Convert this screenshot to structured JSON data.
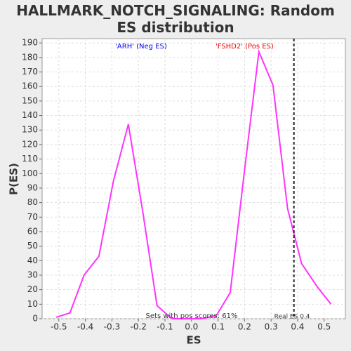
{
  "chart_data": {
    "type": "line",
    "title": "HALLMARK_NOTCH_SIGNALING: Random ES distribution",
    "x_label": "ES",
    "y_label": "P(ES)",
    "x": [
      -0.51,
      -0.458,
      -0.405,
      -0.349,
      -0.294,
      -0.238,
      -0.183,
      -0.13,
      -0.074,
      -0.019,
      0.037,
      0.093,
      0.146,
      0.201,
      0.254,
      0.307,
      0.362,
      0.415,
      0.474,
      0.526
    ],
    "series": [
      {
        "color": "#ff33ff",
        "values": [
          1,
          4,
          30,
          43,
          95,
          134,
          73,
          9,
          0,
          0,
          0,
          2,
          18,
          104,
          184,
          161,
          76,
          38,
          22,
          10
        ]
      }
    ],
    "xlim": [
      -0.563,
      0.58
    ],
    "ylim": [
      0,
      193
    ],
    "xticks": [
      -0.5,
      -0.4,
      -0.3,
      -0.2,
      -0.1,
      {
        "value": 0,
        "label": "0.0"
      },
      0.1,
      0.2,
      0.3,
      0.4,
      0.5
    ],
    "yticks": [
      0,
      10,
      20,
      30,
      40,
      50,
      60,
      70,
      80,
      90,
      100,
      110,
      120,
      130,
      140,
      150,
      160,
      170,
      180,
      190
    ],
    "grid": true,
    "real_es": {
      "value": 0.386,
      "label": "Real ES 0.4"
    },
    "annotations": [
      {
        "text": "'ARH' (Neg ES)",
        "x": -0.19,
        "color": "#0000ee"
      },
      {
        "text": "'FSHD2' (Pos ES)",
        "x": 0.2,
        "color": "#ee0000"
      }
    ],
    "footnote": "Sets with pos scores: 61%"
  }
}
